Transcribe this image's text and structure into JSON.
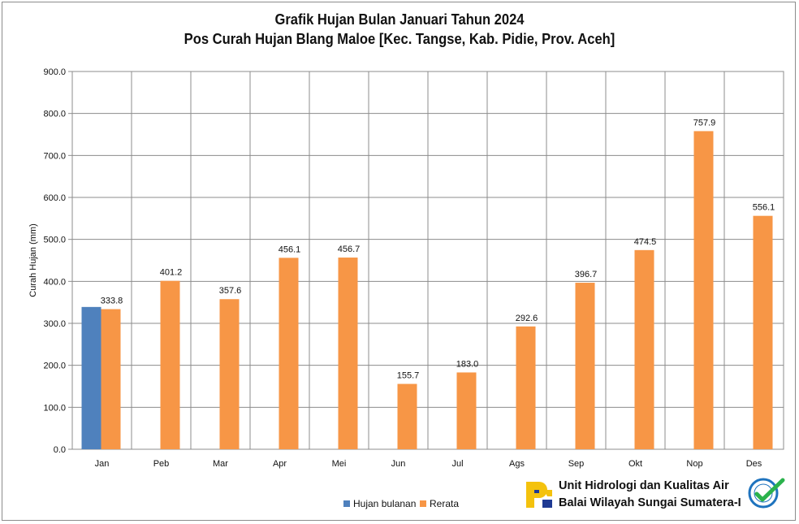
{
  "title_line1": "Grafik Hujan Bulan Januari Tahun 2024",
  "title_line2": "Pos Curah Hujan Blang Maloe [Kec. Tangse, Kab. Pidie, Prov. Aceh]",
  "organization": {
    "line1": "Unit Hidrologi dan Kualitas Air",
    "line2": "Balai Wilayah Sungai Sumatera-I",
    "logo_icon": "pupr-logo-icon",
    "badge_icon": "certified-badge-icon"
  },
  "colors": {
    "hujan_bulanan": "#4f81bd",
    "rerata": "#f79646",
    "gridline": "#8c8c8c"
  },
  "chart_data": {
    "type": "bar",
    "ylabel": "Curah Hujan (mm)",
    "xlabel": "",
    "ylim": [
      0,
      900
    ],
    "yticks": [
      "0.0",
      "100.0",
      "200.0",
      "300.0",
      "400.0",
      "500.0",
      "600.0",
      "700.0",
      "800.0",
      "900.0"
    ],
    "grid": true,
    "legend_position": "bottom",
    "categories": [
      "Jan",
      "Peb",
      "Mar",
      "Apr",
      "Mei",
      "Jun",
      "Jul",
      "Ags",
      "Sep",
      "Okt",
      "Nop",
      "Des"
    ],
    "series": [
      {
        "name": "Hujan bulanan",
        "values": [
          339,
          null,
          null,
          null,
          null,
          null,
          null,
          null,
          null,
          null,
          null,
          null
        ],
        "labels": [
          "",
          "",
          "",
          "",
          "",
          "",
          "",
          "",
          "",
          "",
          "",
          ""
        ]
      },
      {
        "name": "Rerata",
        "values": [
          333.8,
          401.2,
          357.6,
          456.1,
          456.7,
          155.7,
          183.0,
          292.6,
          396.7,
          474.5,
          757.9,
          556.1
        ],
        "labels": [
          "333.8",
          "401.2",
          "357.6",
          "456.1",
          "456.7",
          "155.7",
          "183.0",
          "292.6",
          "396.7",
          "474.5",
          "757.9",
          "556.1"
        ]
      }
    ]
  }
}
